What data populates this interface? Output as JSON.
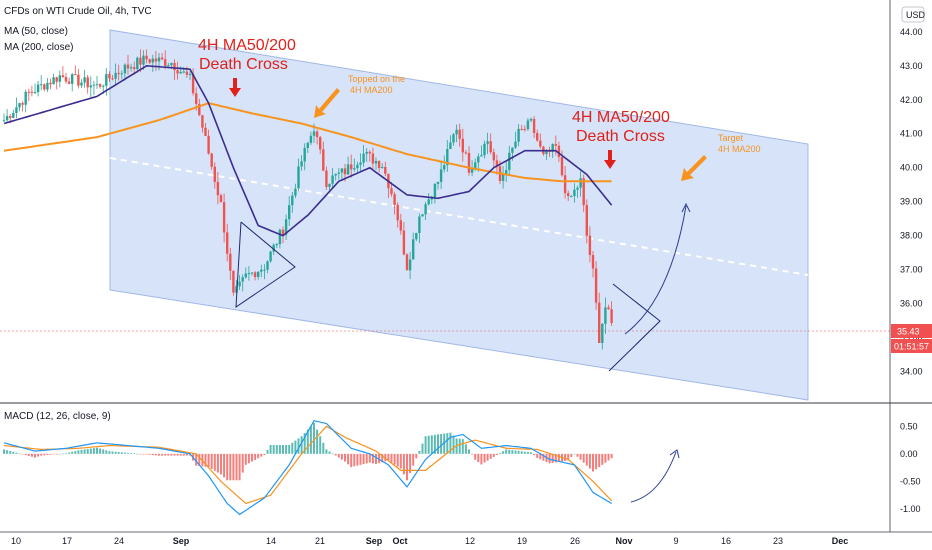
{
  "header": {
    "symbol_title": "CFDs on WTI Crude Oil, 4h, TVC",
    "ma50_legend": "MA (50, close)",
    "ma200_legend": "MA (200, close)",
    "currency": "USD"
  },
  "price_badges": {
    "last_price": "35.43",
    "countdown": "01:51:57",
    "price_color": "#f05050"
  },
  "annotations": {
    "cross1_line1": "4H MA50/200",
    "cross1_line2": "Death Cross",
    "cross2_line1": "4H MA50/200",
    "cross2_line2": "Death Cross",
    "topped_line1": "Topped on the",
    "topped_line2": "4H MA200",
    "target_line1": "Target",
    "target_line2": "4H MA200"
  },
  "macd_legend": "MACD (12, 26, close, 9)",
  "colors": {
    "up": "#26a69a",
    "down": "#ef5350",
    "ma50": "#3b2d8f",
    "ma200": "#f7931e",
    "channel": "#c9d9f5",
    "annotation_red": "#e0201a",
    "macd_line": "#2196f3",
    "signal_line": "#f7931e"
  },
  "chart_data": [
    {
      "type": "candlestick",
      "title": "CFDs on WTI Crude Oil, 4h, TVC",
      "x_tick_labels": [
        "10",
        "17",
        "24",
        "Sep",
        "14",
        "21",
        "Sep",
        "Oct",
        "12",
        "19",
        "26",
        "Nov",
        "9",
        "16",
        "23",
        "Dec"
      ],
      "y_tick_labels": [
        "34.00",
        "35.00",
        "36.00",
        "37.00",
        "38.00",
        "39.00",
        "40.00",
        "41.00",
        "42.00",
        "43.00",
        "44.00"
      ],
      "ylim": [
        33.4,
        44.2
      ],
      "anchors": [
        {
          "bar": 0,
          "close": 41.4
        },
        {
          "bar": 8,
          "close": 42.2
        },
        {
          "bar": 18,
          "close": 42.7
        },
        {
          "bar": 30,
          "close": 42.4
        },
        {
          "bar": 38,
          "close": 42.9
        },
        {
          "bar": 46,
          "close": 43.2
        },
        {
          "bar": 54,
          "close": 43.1
        },
        {
          "bar": 60,
          "close": 42.6
        },
        {
          "bar": 64,
          "close": 41.2
        },
        {
          "bar": 70,
          "close": 38.9
        },
        {
          "bar": 74,
          "close": 36.2
        },
        {
          "bar": 78,
          "close": 36.8
        },
        {
          "bar": 84,
          "close": 37.1
        },
        {
          "bar": 90,
          "close": 38.2
        },
        {
          "bar": 96,
          "close": 40.2
        },
        {
          "bar": 100,
          "close": 41.2
        },
        {
          "bar": 104,
          "close": 39.6
        },
        {
          "bar": 110,
          "close": 39.9
        },
        {
          "bar": 116,
          "close": 40.4
        },
        {
          "bar": 122,
          "close": 40.1
        },
        {
          "bar": 126,
          "close": 39.0
        },
        {
          "bar": 130,
          "close": 37.1
        },
        {
          "bar": 134,
          "close": 38.6
        },
        {
          "bar": 140,
          "close": 39.6
        },
        {
          "bar": 146,
          "close": 41.2
        },
        {
          "bar": 150,
          "close": 40.0
        },
        {
          "bar": 156,
          "close": 40.8
        },
        {
          "bar": 160,
          "close": 39.6
        },
        {
          "bar": 166,
          "close": 41.0
        },
        {
          "bar": 170,
          "close": 41.3
        },
        {
          "bar": 174,
          "close": 40.3
        },
        {
          "bar": 178,
          "close": 40.6
        },
        {
          "bar": 182,
          "close": 39.0
        },
        {
          "bar": 186,
          "close": 39.6
        },
        {
          "bar": 188,
          "close": 38.0
        },
        {
          "bar": 190,
          "close": 36.9
        },
        {
          "bar": 192,
          "close": 35.0
        },
        {
          "bar": 194,
          "close": 35.9
        },
        {
          "bar": 196,
          "close": 35.43
        }
      ],
      "ma50_anchors": [
        {
          "bar": 0,
          "value": 41.3
        },
        {
          "bar": 30,
          "value": 42.1
        },
        {
          "bar": 46,
          "value": 43.0
        },
        {
          "bar": 60,
          "value": 42.9
        },
        {
          "bar": 66,
          "value": 41.9
        },
        {
          "bar": 74,
          "value": 40.0
        },
        {
          "bar": 82,
          "value": 38.3
        },
        {
          "bar": 90,
          "value": 38.0
        },
        {
          "bar": 98,
          "value": 38.6
        },
        {
          "bar": 108,
          "value": 39.6
        },
        {
          "bar": 118,
          "value": 40.0
        },
        {
          "bar": 130,
          "value": 39.2
        },
        {
          "bar": 140,
          "value": 39.1
        },
        {
          "bar": 150,
          "value": 39.3
        },
        {
          "bar": 158,
          "value": 40.0
        },
        {
          "bar": 168,
          "value": 40.5
        },
        {
          "bar": 178,
          "value": 40.5
        },
        {
          "bar": 188,
          "value": 39.8
        },
        {
          "bar": 196,
          "value": 38.9
        }
      ],
      "ma200_anchors": [
        {
          "bar": 0,
          "value": 40.5
        },
        {
          "bar": 30,
          "value": 40.9
        },
        {
          "bar": 50,
          "value": 41.4
        },
        {
          "bar": 66,
          "value": 41.9
        },
        {
          "bar": 80,
          "value": 41.6
        },
        {
          "bar": 96,
          "value": 41.3
        },
        {
          "bar": 112,
          "value": 40.9
        },
        {
          "bar": 130,
          "value": 40.4
        },
        {
          "bar": 150,
          "value": 40.0
        },
        {
          "bar": 168,
          "value": 39.7
        },
        {
          "bar": 180,
          "value": 39.6
        },
        {
          "bar": 196,
          "value": 39.6
        }
      ]
    },
    {
      "type": "line",
      "title": "MACD (12, 26, close, 9)",
      "y_tick_labels": [
        "-1.00",
        "-0.50",
        "0.00",
        "0.50"
      ],
      "ylim": [
        -1.2,
        0.65
      ],
      "macd_anchors": [
        {
          "bar": 0,
          "value": 0.2
        },
        {
          "bar": 10,
          "value": 0.05
        },
        {
          "bar": 20,
          "value": 0.1
        },
        {
          "bar": 30,
          "value": 0.2
        },
        {
          "bar": 40,
          "value": 0.15
        },
        {
          "bar": 50,
          "value": 0.1
        },
        {
          "bar": 60,
          "value": 0.0
        },
        {
          "bar": 66,
          "value": -0.4
        },
        {
          "bar": 72,
          "value": -0.9
        },
        {
          "bar": 76,
          "value": -1.1
        },
        {
          "bar": 84,
          "value": -0.8
        },
        {
          "bar": 92,
          "value": -0.2
        },
        {
          "bar": 100,
          "value": 0.6
        },
        {
          "bar": 104,
          "value": 0.55
        },
        {
          "bar": 112,
          "value": 0.1
        },
        {
          "bar": 118,
          "value": 0.0
        },
        {
          "bar": 124,
          "value": -0.2
        },
        {
          "bar": 130,
          "value": -0.6
        },
        {
          "bar": 136,
          "value": -0.1
        },
        {
          "bar": 144,
          "value": 0.3
        },
        {
          "bar": 148,
          "value": 0.35
        },
        {
          "bar": 154,
          "value": 0.1
        },
        {
          "bar": 162,
          "value": 0.15
        },
        {
          "bar": 170,
          "value": 0.1
        },
        {
          "bar": 176,
          "value": -0.1
        },
        {
          "bar": 184,
          "value": -0.2
        },
        {
          "bar": 190,
          "value": -0.7
        },
        {
          "bar": 196,
          "value": -0.9
        }
      ],
      "signal_anchors": [
        {
          "bar": 0,
          "value": 0.15
        },
        {
          "bar": 12,
          "value": 0.08
        },
        {
          "bar": 24,
          "value": 0.1
        },
        {
          "bar": 34,
          "value": 0.15
        },
        {
          "bar": 50,
          "value": 0.12
        },
        {
          "bar": 62,
          "value": 0.0
        },
        {
          "bar": 70,
          "value": -0.5
        },
        {
          "bar": 78,
          "value": -0.9
        },
        {
          "bar": 86,
          "value": -0.75
        },
        {
          "bar": 96,
          "value": 0.0
        },
        {
          "bar": 104,
          "value": 0.5
        },
        {
          "bar": 110,
          "value": 0.3
        },
        {
          "bar": 120,
          "value": 0.05
        },
        {
          "bar": 128,
          "value": -0.3
        },
        {
          "bar": 136,
          "value": -0.3
        },
        {
          "bar": 146,
          "value": 0.15
        },
        {
          "bar": 152,
          "value": 0.25
        },
        {
          "bar": 162,
          "value": 0.1
        },
        {
          "bar": 172,
          "value": 0.08
        },
        {
          "bar": 182,
          "value": -0.1
        },
        {
          "bar": 190,
          "value": -0.5
        },
        {
          "bar": 196,
          "value": -0.85
        }
      ]
    }
  ]
}
